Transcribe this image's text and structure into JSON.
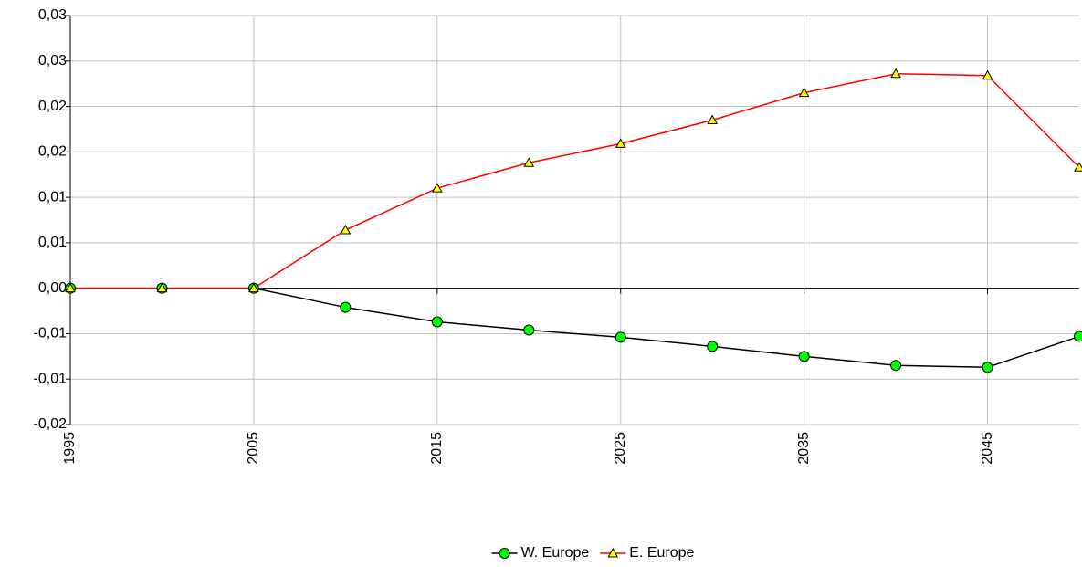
{
  "chart_data": {
    "type": "line",
    "x": [
      1995,
      2000,
      2005,
      2010,
      2015,
      2020,
      2025,
      2030,
      2035,
      2040,
      2045,
      2050
    ],
    "series": [
      {
        "name": "W. Europe",
        "color": "#000000",
        "marker": "circle",
        "marker_color": "#00ff00",
        "values": [
          0,
          0,
          0,
          -0.0021,
          -0.0037,
          -0.0046,
          -0.0054,
          -0.0064,
          -0.0075,
          -0.0085,
          -0.0087,
          -0.0053
        ]
      },
      {
        "name": "E. Europe",
        "color": "#ff0000",
        "marker": "triangle",
        "marker_color": "#ffff00",
        "values": [
          0,
          0,
          0,
          0.0064,
          0.011,
          0.0138,
          0.0159,
          0.0185,
          0.0215,
          0.0236,
          0.0234,
          0.0133
        ]
      }
    ],
    "xlim": [
      1995,
      2050
    ],
    "xticks": [
      1995,
      2005,
      2015,
      2025,
      2035,
      2045
    ],
    "ylim": [
      -0.015,
      0.03
    ],
    "yticks": [
      {
        "value": -0.015,
        "label": "-0,02"
      },
      {
        "value": -0.01,
        "label": "-0,01"
      },
      {
        "value": -0.005,
        "label": "-0,01"
      },
      {
        "value": 0,
        "label": "0,00"
      },
      {
        "value": 0.005,
        "label": "0,01"
      },
      {
        "value": 0.01,
        "label": "0,01"
      },
      {
        "value": 0.015,
        "label": "0,02"
      },
      {
        "value": 0.02,
        "label": "0,02"
      },
      {
        "value": 0.025,
        "label": "0,03"
      },
      {
        "value": 0.03,
        "label": "0,03"
      }
    ],
    "grid": true,
    "legend": "bottom"
  }
}
